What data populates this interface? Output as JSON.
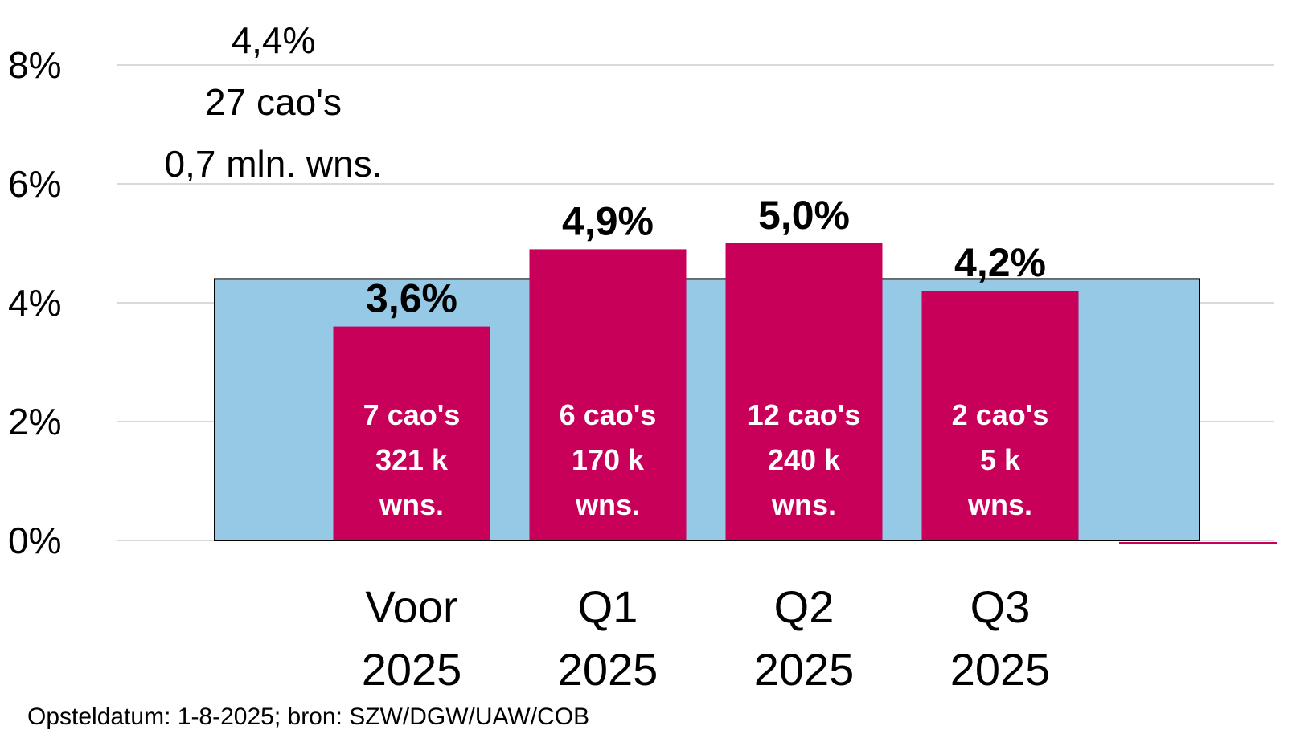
{
  "chart_data": {
    "type": "bar",
    "categories": [
      [
        "Voor",
        "2025"
      ],
      [
        "Q1",
        "2025"
      ],
      [
        "Q2",
        "2025"
      ],
      [
        "Q3",
        "2025"
      ]
    ],
    "values": [
      3.6,
      4.9,
      5.0,
      4.2
    ],
    "value_labels": [
      "3,6%",
      "4,9%",
      "5,0%",
      "4,2%"
    ],
    "bar_notes": [
      [
        "7 cao's",
        "321 k",
        "wns."
      ],
      [
        "6 cao's",
        "170 k",
        "wns."
      ],
      [
        "12 cao's",
        "240 k",
        "wns."
      ],
      [
        "2 cao's",
        "5 k",
        "wns."
      ]
    ],
    "average": {
      "value": 4.4,
      "lines": [
        "4,4%",
        "27 cao's",
        "0,7 mln. wns."
      ]
    },
    "y_ticks": [
      "0%",
      "2%",
      "4%",
      "6%",
      "8%"
    ],
    "y_tick_values": [
      0,
      2,
      4,
      6,
      8
    ],
    "ylim": [
      0,
      8.5
    ],
    "grid": true,
    "colors": {
      "bar": "#C8005A",
      "average_band": "#95C9E6",
      "average_border": "#000000",
      "grid": "#D9D9D9"
    }
  },
  "footnote": "Opsteldatum: 1-8-2025; bron: SZW/DGW/UAW/COB"
}
